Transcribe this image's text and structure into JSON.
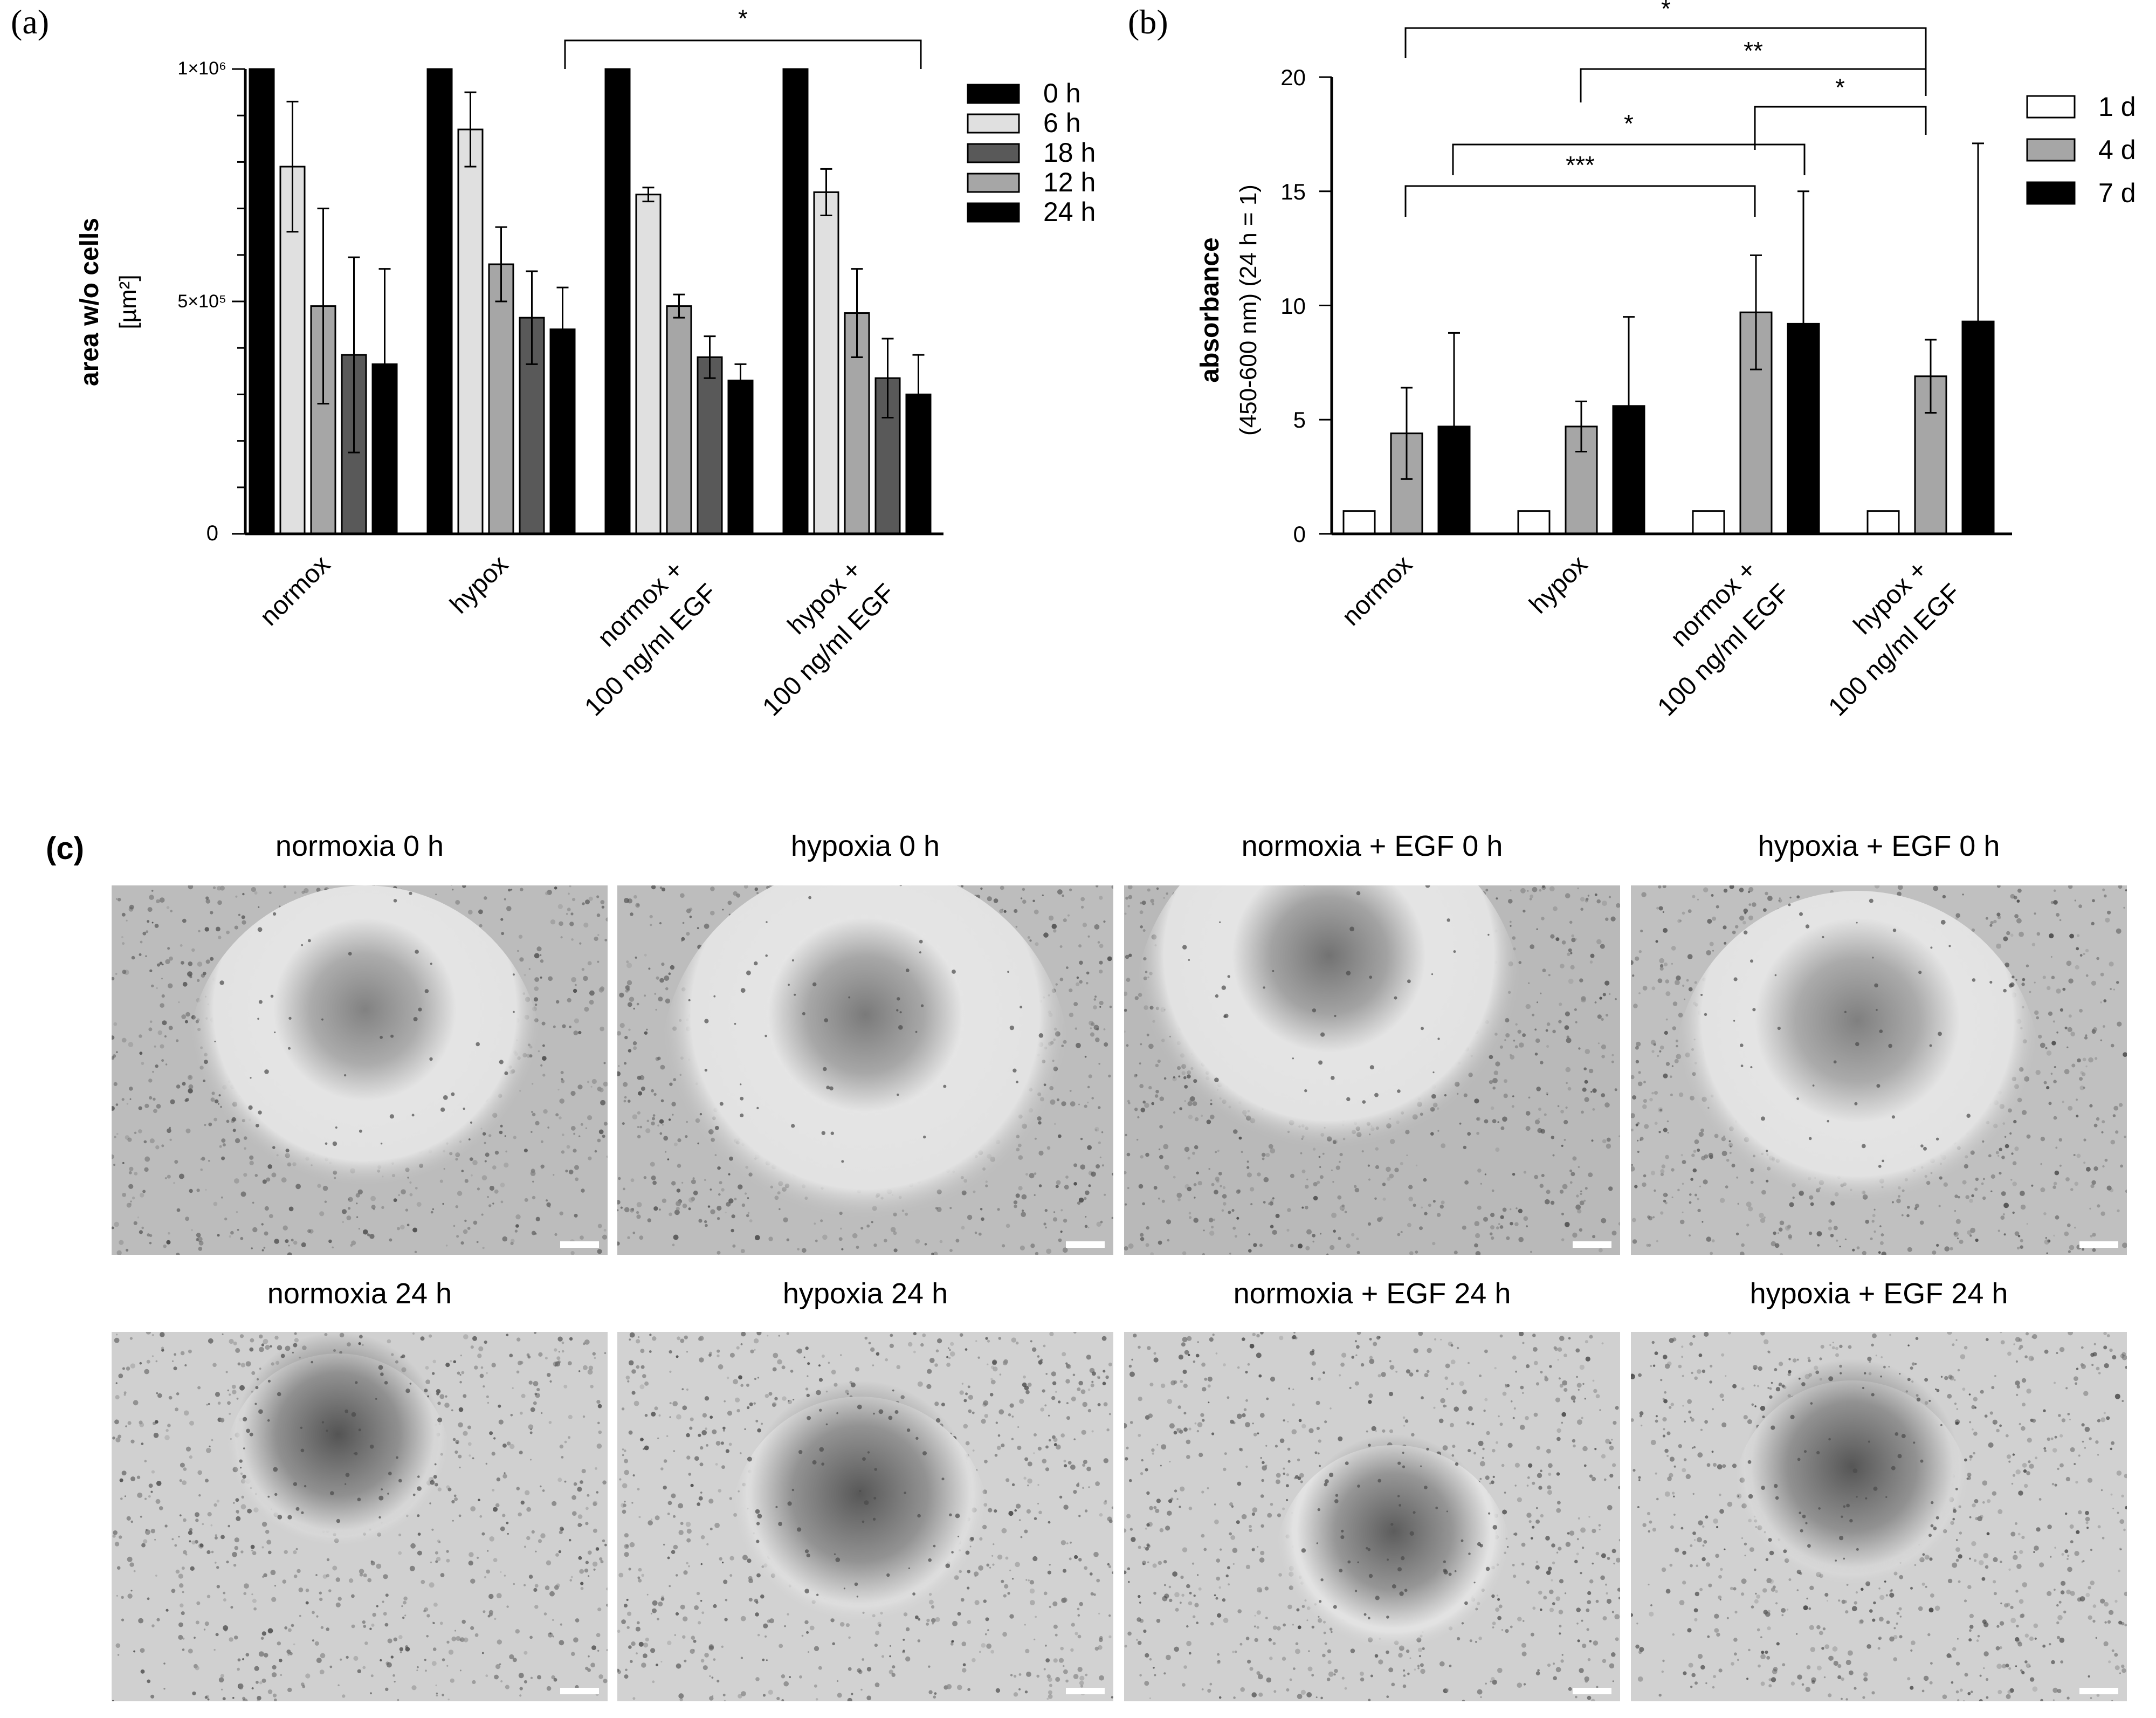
{
  "panel_a": {
    "letter": "(a)",
    "y_title": "area w/o cells",
    "y_unit": "[µm²]",
    "y_ticks": [
      "1×10⁶",
      "5×10⁵",
      "0"
    ],
    "legend": [
      "0 h",
      "6 h",
      "18 h",
      "12 h",
      "24 h"
    ],
    "significance": [
      "*"
    ]
  },
  "panel_b": {
    "letter": "(b)",
    "y_title": "absorbance",
    "y_subtitle": "(450-600 nm) (24 h = 1)",
    "y_ticks": [
      "20",
      "15",
      "10",
      "5",
      "0"
    ],
    "legend": [
      "1 d",
      "4 d",
      "7 d"
    ],
    "significance": [
      "*",
      "**",
      "*",
      "*",
      "***"
    ]
  },
  "panel_c": {
    "letter": "(c)",
    "titles_top": [
      "normoxia 0 h",
      "hypoxia 0 h",
      "normoxia + EGF 0 h",
      "hypoxia + EGF 0 h"
    ],
    "titles_bottom": [
      "normoxia 24 h",
      "hypoxia 24 h",
      "normoxia + EGF 24 h",
      "hypoxia + EGF 24 h"
    ]
  },
  "chart_data": [
    {
      "type": "bar",
      "panel": "a",
      "categories": [
        [
          "normox"
        ],
        [
          "hypox"
        ],
        [
          "normox +",
          "100 ng/ml EGF"
        ],
        [
          "hypox +",
          "100 ng/ml EGF"
        ]
      ],
      "ylabel": "area w/o cells",
      "ylim": [
        0,
        1000000
      ],
      "legend_position": "right",
      "series": [
        {
          "name": "0 h",
          "color": "#000000",
          "values": [
            1000000,
            1000000,
            1000000,
            1000000
          ],
          "errors": [
            0,
            0,
            0,
            0
          ]
        },
        {
          "name": "6 h",
          "color": "#e0e0e0",
          "values": [
            790000,
            870000,
            730000,
            735000
          ],
          "errors": [
            140000,
            80000,
            15000,
            50000
          ]
        },
        {
          "name": "12 h",
          "color": "#a6a6a6",
          "values": [
            490000,
            580000,
            490000,
            475000
          ],
          "errors": [
            210000,
            80000,
            25000,
            95000
          ]
        },
        {
          "name": "18 h",
          "color": "#595959",
          "values": [
            385000,
            465000,
            380000,
            335000
          ],
          "errors": [
            210000,
            100000,
            45000,
            85000
          ]
        },
        {
          "name": "24 h",
          "color": "#000000",
          "values": [
            365000,
            440000,
            330000,
            300000
          ],
          "errors": [
            205000,
            90000,
            35000,
            85000
          ]
        }
      ],
      "annotations": [
        {
          "text": "*",
          "from_group": 2,
          "to_group": 3
        }
      ]
    },
    {
      "type": "bar",
      "panel": "b",
      "categories": [
        [
          "normox"
        ],
        [
          "hypox"
        ],
        [
          "normox +",
          "100 ng/ml EGF"
        ],
        [
          "hypox +",
          "100 ng/ml EGF"
        ]
      ],
      "ylabel": "absorbance (450-600 nm) (24 h = 1)",
      "ylim": [
        0,
        20
      ],
      "legend_position": "right",
      "series": [
        {
          "name": "1 d",
          "color": "#ffffff",
          "values": [
            1,
            1,
            1,
            1
          ],
          "errors": [
            0,
            0,
            0,
            0
          ]
        },
        {
          "name": "4 d",
          "color": "#a6a6a6",
          "values": [
            4.4,
            4.7,
            9.7,
            6.9
          ],
          "errors": [
            2.0,
            1.1,
            2.5,
            1.6
          ]
        },
        {
          "name": "7 d",
          "color": "#000000",
          "values": [
            4.7,
            5.6,
            9.2,
            9.3
          ],
          "errors": [
            4.1,
            3.9,
            5.8,
            7.8
          ]
        }
      ],
      "annotations": [
        {
          "text": "*",
          "from": "normox 4 d",
          "to": "hypox + 4 d"
        },
        {
          "text": "**",
          "from": "hypox 4 d",
          "to": "hypox + 4 d"
        },
        {
          "text": "*",
          "from": "normox + 4 d",
          "to": "hypox + 4 d"
        },
        {
          "text": "*",
          "from": "normox 7 d",
          "to": "normox + 7 d"
        },
        {
          "text": "***",
          "from": "normox 4 d",
          "to": "normox + 4 d"
        }
      ]
    }
  ]
}
